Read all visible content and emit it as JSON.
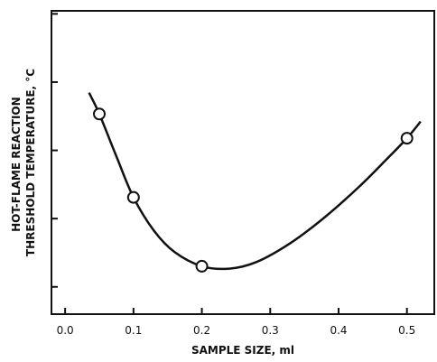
{
  "chart_data": {
    "type": "scatter",
    "title": "",
    "xlabel": "SAMPLE SIZE, ml",
    "ylabel_line1": "HOT-FLAME REACTION",
    "ylabel_line2": "THRESHOLD TEMPERATURE, °C",
    "xlim": [
      -0.02,
      0.54
    ],
    "ylim": [
      0,
      1
    ],
    "y_tick_labels_shown": false,
    "x_ticks": [
      0.0,
      0.1,
      0.2,
      0.3,
      0.4,
      0.5
    ],
    "x_tick_labels": [
      "0.0",
      "0.1",
      "0.2",
      "0.3",
      "0.4",
      "0.5"
    ],
    "y_ticks": [
      0.09,
      0.315,
      0.54,
      0.765,
      0.99
    ],
    "grid": false,
    "legend": "none",
    "series": [
      {
        "kind": "points",
        "marker": "open-circle",
        "x": [
          0.05,
          0.1,
          0.2,
          0.5
        ],
        "y": [
          0.66,
          0.385,
          0.158,
          0.58
        ]
      },
      {
        "kind": "fitted-curve",
        "x": [
          0.035,
          0.05,
          0.075,
          0.1,
          0.13,
          0.16,
          0.2,
          0.24,
          0.28,
          0.33,
          0.38,
          0.43,
          0.47,
          0.5,
          0.52
        ],
        "y": [
          0.73,
          0.66,
          0.52,
          0.385,
          0.275,
          0.205,
          0.158,
          0.15,
          0.172,
          0.235,
          0.32,
          0.42,
          0.51,
          0.58,
          0.635
        ]
      }
    ],
    "colors": {
      "line": "#111111",
      "marker_fill": "#ffffff",
      "axis": "#111111"
    }
  }
}
